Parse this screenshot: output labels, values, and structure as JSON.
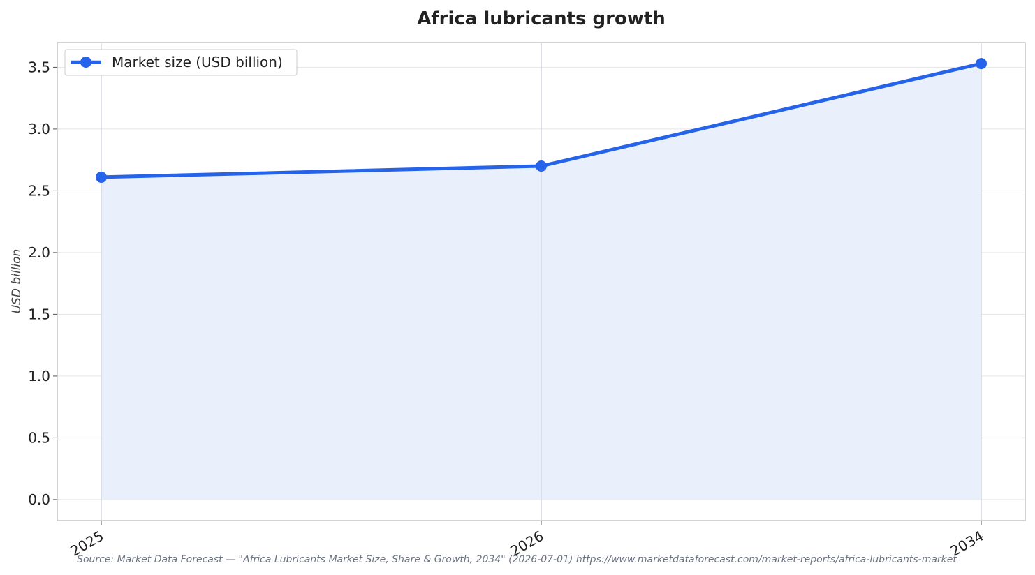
{
  "chart_data": {
    "type": "area",
    "title": "Africa lubricants growth",
    "xlabel": "",
    "ylabel": "USD billion",
    "categories": [
      "2025",
      "2026",
      "2034"
    ],
    "series": [
      {
        "name": "Market size (USD billion)",
        "values": [
          2.61,
          2.7,
          3.53
        ]
      }
    ],
    "ylim": [
      -0.17,
      3.7
    ],
    "yticks": [
      "0.0",
      "0.5",
      "1.0",
      "1.5",
      "2.0",
      "2.5",
      "3.0",
      "3.5"
    ],
    "grid": true,
    "legend_position": "top-left",
    "colors": {
      "line": "#2563eb",
      "fill": "#e9effb",
      "grid": "#e5e5e5",
      "frame": "#c4c4c4"
    },
    "source": "Source: Market Data Forecast — \"Africa Lubricants Market Size, Share & Growth, 2034\" (2026-07-01) https://www.marketdataforecast.com/market-reports/africa-lubricants-market"
  }
}
